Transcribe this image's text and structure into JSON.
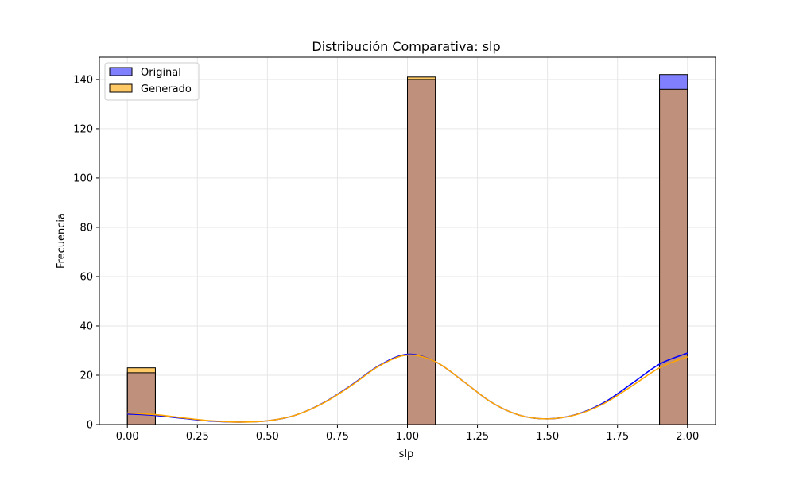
{
  "chart_data": {
    "type": "bar",
    "title": "Distribución Comparativa: slp",
    "xlabel": "slp",
    "ylabel": "Frecuencia",
    "xlim": [
      -0.1,
      2.1
    ],
    "ylim": [
      0,
      149
    ],
    "xticks": [
      0.0,
      0.25,
      0.5,
      0.75,
      1.0,
      1.25,
      1.5,
      1.75,
      2.0
    ],
    "xtick_labels": [
      "0.00",
      "0.25",
      "0.50",
      "0.75",
      "1.00",
      "1.25",
      "1.50",
      "1.75",
      "2.00"
    ],
    "yticks": [
      0,
      20,
      40,
      60,
      80,
      100,
      120,
      140
    ],
    "ytick_labels": [
      "0",
      "20",
      "40",
      "60",
      "80",
      "100",
      "120",
      "140"
    ],
    "grid": true,
    "legend_position": "top-left",
    "bin_width": 0.1,
    "bins": [
      0.0,
      1.0,
      1.9
    ],
    "series": [
      {
        "name": "Original",
        "fill": "#8080ff",
        "line": "#0000ff",
        "values": [
          21,
          140,
          142
        ],
        "kde": {
          "x": [
            0.0,
            0.1,
            0.2,
            0.3,
            0.4,
            0.5,
            0.6,
            0.7,
            0.8,
            0.9,
            1.0,
            1.1,
            1.2,
            1.3,
            1.4,
            1.5,
            1.6,
            1.7,
            1.8,
            1.9,
            2.0
          ],
          "y": [
            4.3,
            3.7,
            2.5,
            1.4,
            1.0,
            1.5,
            3.8,
            8.8,
            16.0,
            24.0,
            28.5,
            25.5,
            17.5,
            9.0,
            3.8,
            2.3,
            4.0,
            8.8,
            16.5,
            24.5,
            29.0
          ]
        }
      },
      {
        "name": "Generado",
        "fill": "#ffc966",
        "line": "#ffa500",
        "values": [
          23,
          141,
          136
        ],
        "kde": {
          "x": [
            0.0,
            0.1,
            0.2,
            0.3,
            0.4,
            0.5,
            0.6,
            0.7,
            0.8,
            0.9,
            1.0,
            1.1,
            1.2,
            1.3,
            1.4,
            1.5,
            1.6,
            1.7,
            1.8,
            1.9,
            2.0
          ],
          "y": [
            4.7,
            4.0,
            2.7,
            1.5,
            1.0,
            1.5,
            3.8,
            8.7,
            15.8,
            23.8,
            28.2,
            25.5,
            17.5,
            9.0,
            3.8,
            2.3,
            3.9,
            8.4,
            15.5,
            23.0,
            27.5
          ]
        }
      }
    ],
    "overlap_fill": "#bf907b"
  }
}
